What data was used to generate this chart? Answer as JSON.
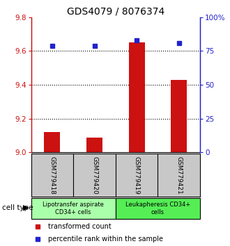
{
  "title": "GDS4079 / 8076374",
  "samples": [
    "GSM779418",
    "GSM779420",
    "GSM779419",
    "GSM779421"
  ],
  "transformed_counts": [
    9.12,
    9.09,
    9.65,
    9.43
  ],
  "percentile_ranks": [
    79,
    79,
    83,
    81
  ],
  "ylim_left": [
    9.0,
    9.8
  ],
  "ylim_right": [
    0,
    100
  ],
  "yticks_left": [
    9.0,
    9.2,
    9.4,
    9.6,
    9.8
  ],
  "yticks_right": [
    0,
    25,
    50,
    75,
    100
  ],
  "ytick_labels_right": [
    "0",
    "25",
    "50",
    "75",
    "100%"
  ],
  "bar_color": "#cc1111",
  "marker_color": "#2222cc",
  "bar_baseline": 9.0,
  "group_labels": [
    "Lipotransfer aspirate\nCD34+ cells",
    "Leukapheresis CD34+\ncells"
  ],
  "group_colors": [
    "#aaffaa",
    "#55ee55"
  ],
  "cell_type_label": "cell type",
  "legend_bar_label": "transformed count",
  "legend_marker_label": "percentile rank within the sample",
  "title_fontsize": 10,
  "tick_fontsize": 7.5,
  "label_fontsize": 7,
  "background_sample_box": "#c8c8c8"
}
